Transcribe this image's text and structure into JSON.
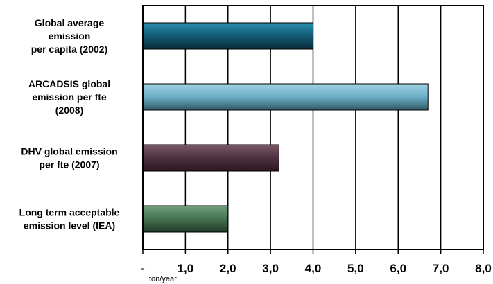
{
  "chart_data": {
    "type": "bar",
    "orientation": "horizontal",
    "categories": [
      [
        "Global average",
        "emission",
        "per capita (2002)"
      ],
      [
        "ARCADSIS global",
        "emission per fte",
        "(2008)"
      ],
      [
        "DHV global emission",
        "per fte (2007)"
      ],
      [
        "Long term acceptable",
        "emission level (IEA)"
      ]
    ],
    "values": [
      4.0,
      6.7,
      3.2,
      2.0
    ],
    "bar_colors": [
      "#1e6f8c",
      "#6fb4cc",
      "#5a3a48",
      "#4d7d58"
    ],
    "xlim": [
      0,
      8
    ],
    "x_ticks": [
      "-",
      "1,0",
      "2,0",
      "3,0",
      "4,0",
      "5,0",
      "6,0",
      "7,0",
      "8,0"
    ],
    "xlabel": "ton/year",
    "grid": "vertical"
  }
}
